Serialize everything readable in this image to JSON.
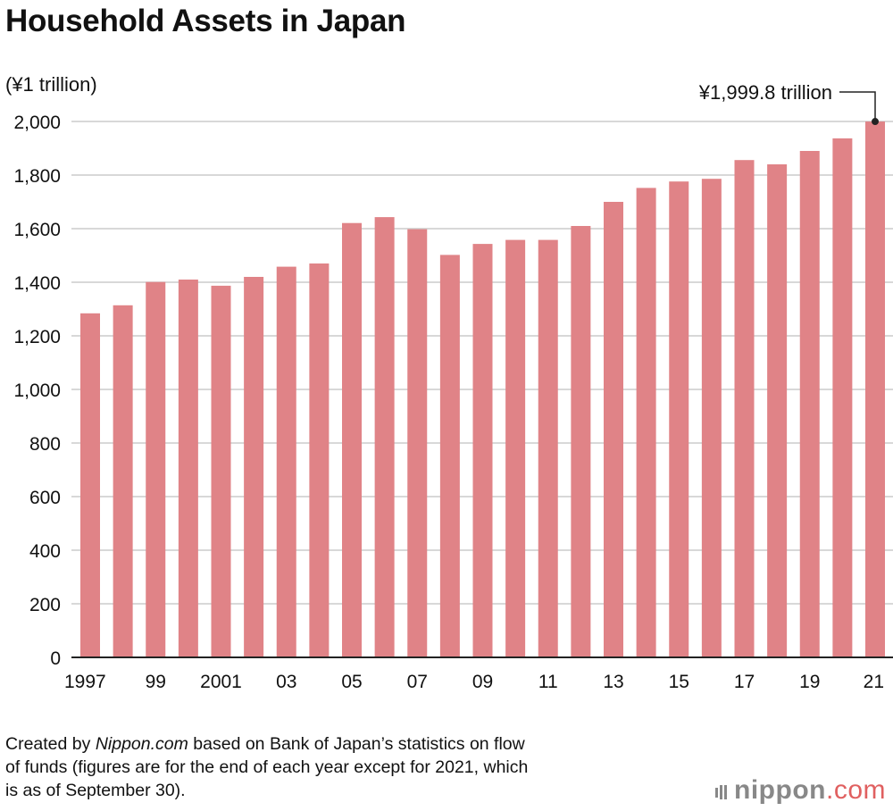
{
  "header": {
    "title": "Household Assets in Japan",
    "unit": "(¥1 trillion)"
  },
  "annotation": {
    "label": "¥1,999.8 trillion",
    "category": "21"
  },
  "source": {
    "prefix": "Created by ",
    "brand": "Nippon.com",
    "line1_rest": " based on Bank of Japan’s statistics on flow",
    "line2": "of funds (figures are for the end of each year except for 2021, which",
    "line3": "is as of September 30)."
  },
  "logo": {
    "main": "nippon",
    "tld": ".com"
  },
  "colors": {
    "bar": "#e08387",
    "grid": "#cccccc",
    "axis": "#222222",
    "logo_gray": "#888888",
    "logo_accent": "#e06060"
  },
  "chart_data": {
    "type": "bar",
    "title": "Household Assets in Japan",
    "ylabel": "(¥1 trillion)",
    "xlabel": "",
    "ylim": [
      0,
      2000
    ],
    "yticks": [
      0,
      200,
      400,
      600,
      800,
      1000,
      1200,
      1400,
      1600,
      1800,
      2000
    ],
    "ytick_labels": [
      "0",
      "200",
      "400",
      "600",
      "800",
      "1,000",
      "1,200",
      "1,400",
      "1,600",
      "1,800",
      "2,000"
    ],
    "grid": true,
    "categories": [
      "1997",
      "98",
      "99",
      "2000",
      "2001",
      "02",
      "03",
      "04",
      "05",
      "06",
      "07",
      "08",
      "09",
      "10",
      "11",
      "12",
      "13",
      "14",
      "15",
      "16",
      "17",
      "18",
      "19",
      "20",
      "21"
    ],
    "xtick_labels_shown": [
      "1997",
      "",
      "99",
      "",
      "2001",
      "",
      "03",
      "",
      "05",
      "",
      "07",
      "",
      "09",
      "",
      "11",
      "",
      "13",
      "",
      "15",
      "",
      "17",
      "",
      "19",
      "",
      "21"
    ],
    "values": [
      1284,
      1314,
      1401,
      1410,
      1387,
      1420,
      1458,
      1470,
      1621,
      1643,
      1598,
      1502,
      1543,
      1558,
      1558,
      1610,
      1700,
      1752,
      1776,
      1786,
      1856,
      1840,
      1890,
      1937,
      1999.8
    ]
  }
}
